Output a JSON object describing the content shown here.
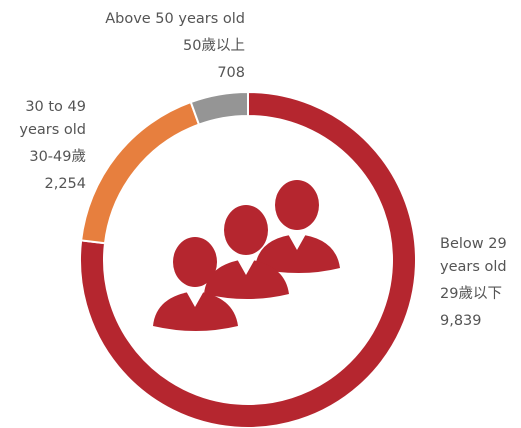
{
  "chart_data": {
    "type": "donut",
    "categories": [
      "Below 29 years old",
      "30 to 49 years old",
      "Above 50 years old"
    ],
    "categories_zh": [
      "29歲以下",
      "30-49歲",
      "50歲以上"
    ],
    "values": [
      9839,
      2254,
      708
    ],
    "value_labels": [
      "9,839",
      "2,254",
      "708"
    ],
    "colors": [
      "#b5262f",
      "#e77f3e",
      "#959595"
    ]
  }
}
